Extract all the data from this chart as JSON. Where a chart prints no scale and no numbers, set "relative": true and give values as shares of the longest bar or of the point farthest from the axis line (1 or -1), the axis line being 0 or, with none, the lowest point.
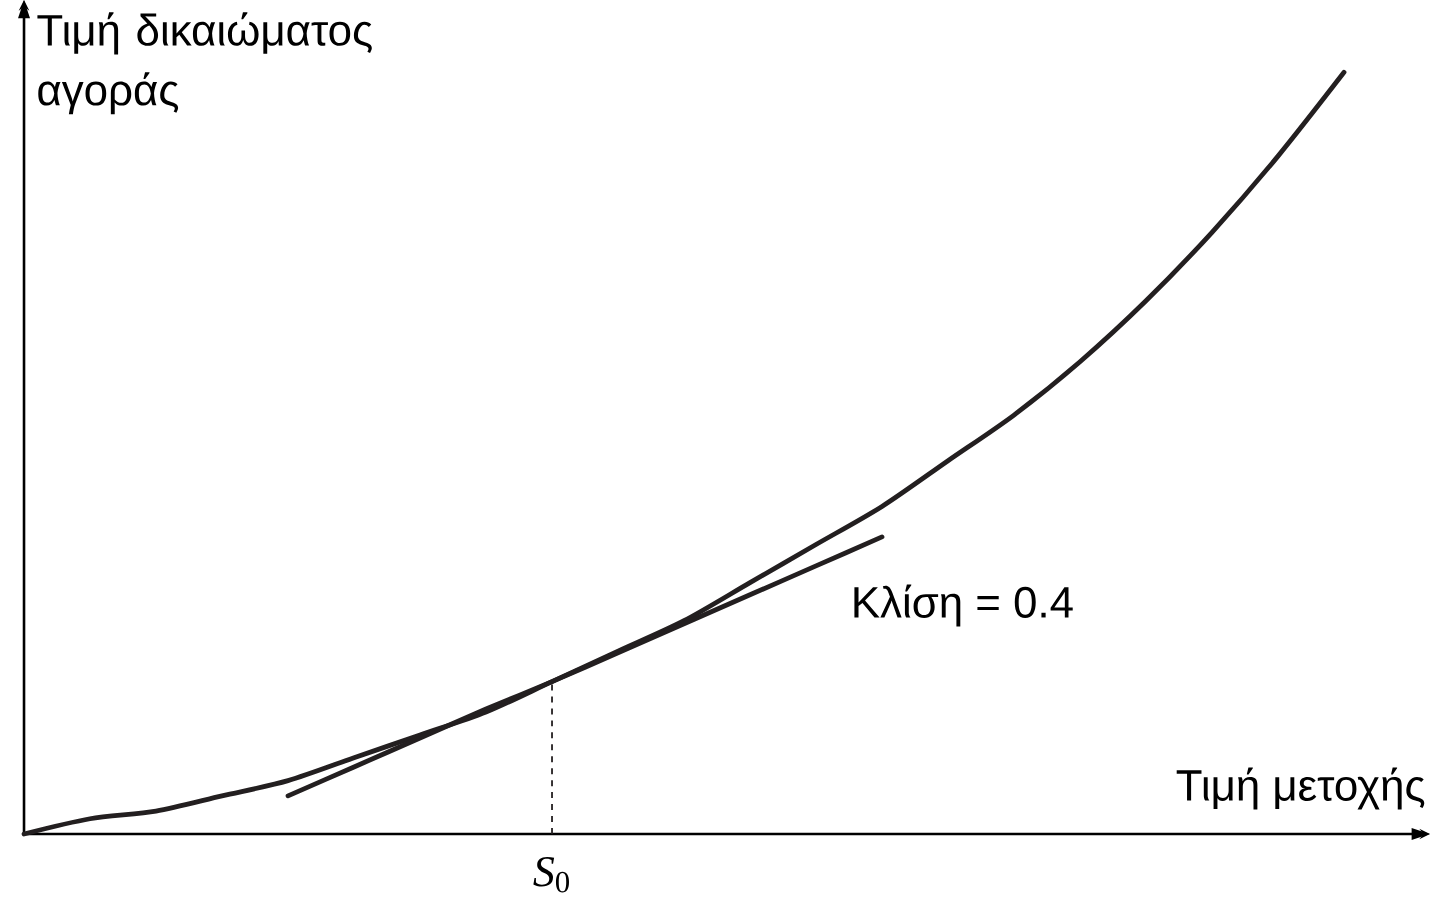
{
  "chart_data": {
    "type": "line",
    "relative": true,
    "xlabel": "Τιμή μετοχής",
    "ylabel": "Τιμή δικαιώματος αγοράς",
    "categories": [
      null,
      null,
      null,
      null,
      null,
      null,
      null,
      null,
      null,
      null,
      null,
      null,
      null,
      null,
      null,
      null,
      null,
      null,
      null,
      null,
      null
    ],
    "series": [
      {
        "color": "#231f20",
        "values": [
          0,
          0.02,
          0.03,
          0.05,
          0.07,
          0.1,
          0.13,
          0.16,
          0.2,
          0.24,
          0.28,
          0.33,
          0.38,
          0.43,
          0.49,
          0.55,
          0.62,
          0.7,
          0.79,
          0.89,
          1
        ]
      },
      {
        "color": "#231f20",
        "values": [
          null,
          null,
          null,
          null,
          0.05,
          0.088,
          0.126,
          0.164,
          0.2,
          0.238,
          0.276,
          0.314,
          0.352,
          0.39,
          null,
          null,
          null,
          null,
          null,
          null,
          null
        ]
      }
    ],
    "annotations": [
      "Κλίση = 0.4",
      {
        "text": "*S*$_{0}$",
        "y": 0.2
      }
    ]
  }
}
